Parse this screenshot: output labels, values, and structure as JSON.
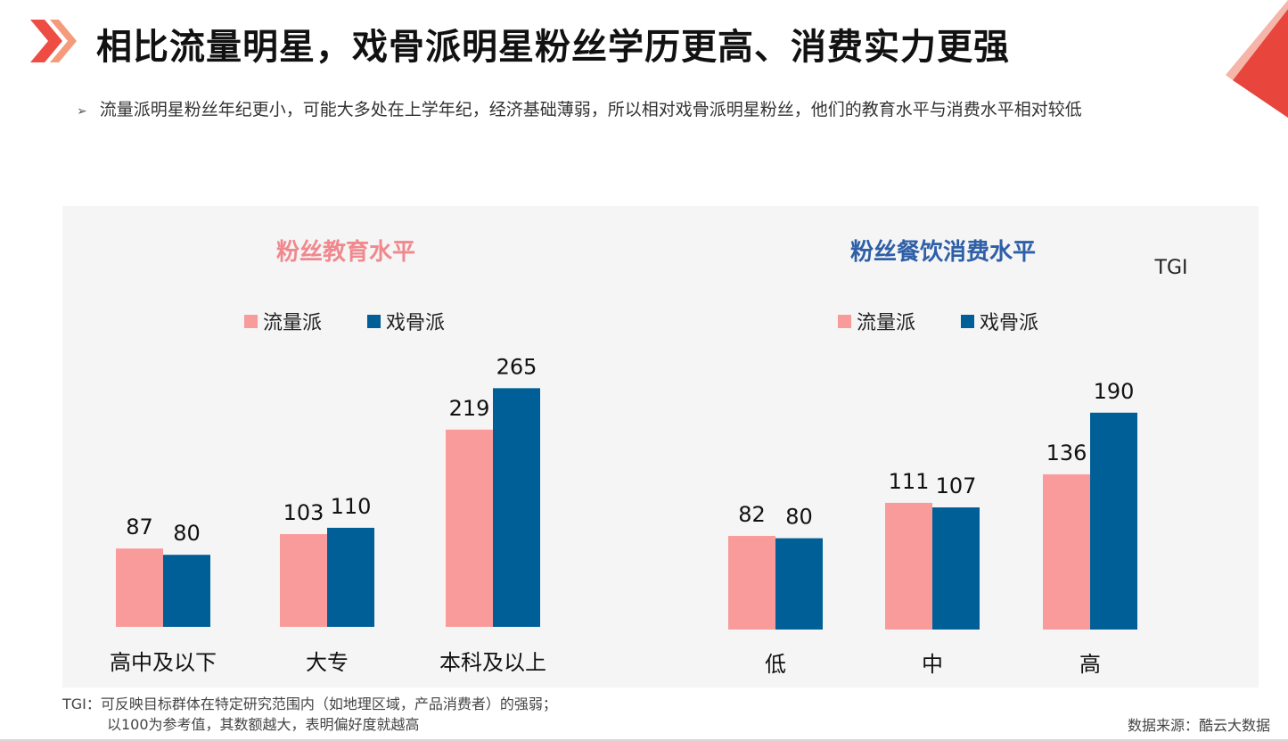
{
  "header": {
    "title": "相比流量明星，戏骨派明星粉丝学历更高、消费实力更强",
    "subtitle": "流量派明星粉丝年纪更小，可能大多处在上学年纪，经济基础薄弱，所以相对戏骨派明星粉丝，他们的教育水平与消费水平相对较低",
    "accent_color": "#e8453c"
  },
  "unit_label": "TGI",
  "footnote": {
    "line1": "TGI：可反映目标群体在特定研究范围内（如地理区域，产品消费者）的强弱；",
    "line2": "以100为参考值，其数额越大，表明偏好度就越高"
  },
  "source": "数据来源：酷云大数据",
  "chart_data": [
    {
      "type": "bar",
      "title": "粉丝教育水平",
      "title_color": "#f0898e",
      "categories": [
        "高中及以下",
        "大专",
        "本科及以上"
      ],
      "series": [
        {
          "name": "流量派",
          "color": "#f99b9b",
          "values": [
            87,
            103,
            219
          ]
        },
        {
          "name": "戏骨派",
          "color": "#005f96",
          "values": [
            80,
            110,
            265
          ]
        }
      ],
      "legend_position": "top",
      "grid": false
    },
    {
      "type": "bar",
      "title": "粉丝餐饮消费水平",
      "title_color": "#2f5fa7",
      "categories": [
        "低",
        "中",
        "高"
      ],
      "series": [
        {
          "name": "流量派",
          "color": "#f99b9b",
          "values": [
            82,
            111,
            136
          ]
        },
        {
          "name": "戏骨派",
          "color": "#005f96",
          "values": [
            80,
            107,
            190
          ]
        }
      ],
      "legend_position": "top",
      "grid": false
    }
  ]
}
